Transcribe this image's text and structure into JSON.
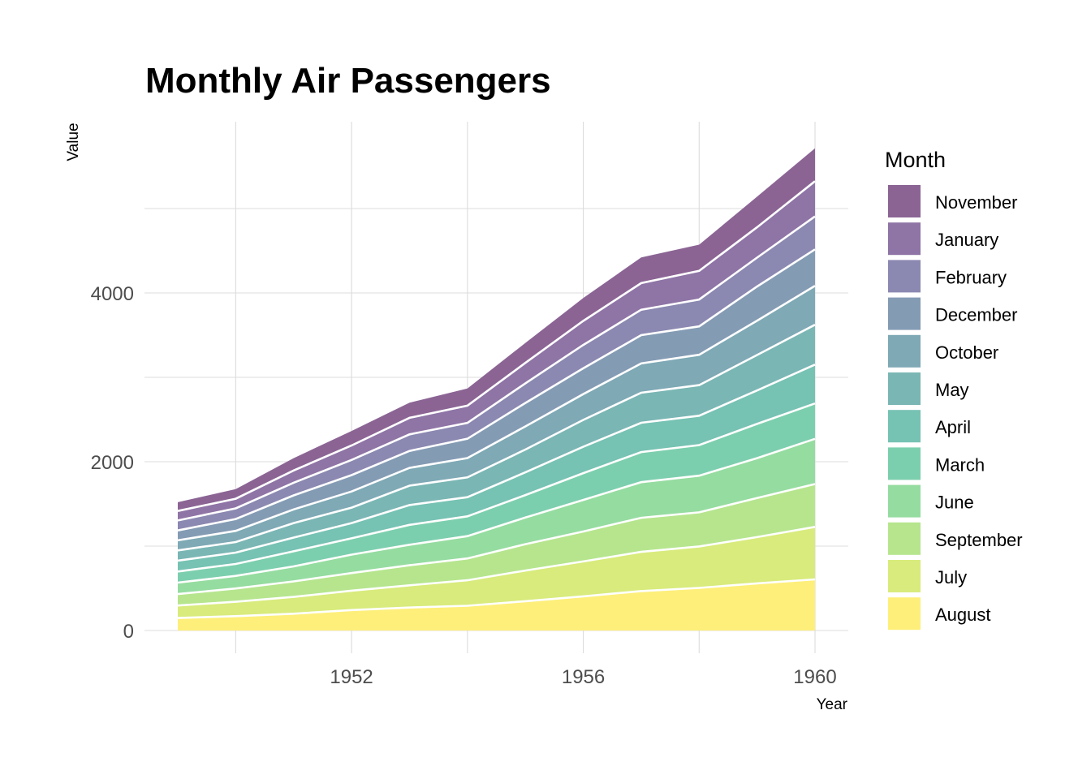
{
  "chart_data": {
    "type": "area",
    "stacked": true,
    "title": "Monthly Air Passengers",
    "xlabel": "Year",
    "ylabel": "Value",
    "x": [
      1949,
      1950,
      1951,
      1952,
      1953,
      1954,
      1955,
      1956,
      1957,
      1958,
      1959,
      1960
    ],
    "xlim": [
      1948.4,
      1960.6
    ],
    "ylim": [
      -500,
      6050
    ],
    "x_ticks": [
      1952,
      1956,
      1960
    ],
    "x_tick_labels": [
      "1952",
      "1956",
      "1960"
    ],
    "y_ticks": [
      0,
      2000,
      4000
    ],
    "y_tick_labels": [
      "0",
      "2000",
      "4000"
    ],
    "y_minor_ticks": [
      1000,
      3000,
      5000
    ],
    "x_minor_ticks": [
      1950,
      1954,
      1958
    ],
    "grid": true,
    "legend_title": "Month",
    "legend_position": "right",
    "stack_order_bottom_to_top": [
      "August",
      "July",
      "September",
      "June",
      "March",
      "April",
      "May",
      "October",
      "December",
      "February",
      "January",
      "November"
    ],
    "series": [
      {
        "name": "November",
        "color": "#8b6494",
        "values": [
          104,
          114,
          146,
          172,
          180,
          203,
          237,
          271,
          305,
          310,
          362,
          390
        ]
      },
      {
        "name": "January",
        "color": "#8f74a6",
        "values": [
          112,
          115,
          145,
          171,
          196,
          204,
          242,
          284,
          315,
          340,
          360,
          417
        ]
      },
      {
        "name": "February",
        "color": "#8b88b1",
        "values": [
          118,
          126,
          150,
          180,
          196,
          188,
          233,
          277,
          301,
          318,
          342,
          391
        ]
      },
      {
        "name": "December",
        "color": "#849bb4",
        "values": [
          118,
          140,
          166,
          194,
          201,
          229,
          278,
          306,
          336,
          337,
          405,
          432
        ]
      },
      {
        "name": "October",
        "color": "#7ea9b5",
        "values": [
          119,
          133,
          162,
          191,
          211,
          229,
          274,
          306,
          347,
          359,
          407,
          461
        ]
      },
      {
        "name": "May",
        "color": "#7ab6b4",
        "values": [
          121,
          125,
          172,
          183,
          229,
          234,
          270,
          318,
          355,
          363,
          420,
          472
        ]
      },
      {
        "name": "April",
        "color": "#76c2b3",
        "values": [
          129,
          135,
          163,
          181,
          235,
          227,
          269,
          313,
          348,
          348,
          396,
          461
        ]
      },
      {
        "name": "March",
        "color": "#7ccfae",
        "values": [
          132,
          141,
          178,
          193,
          236,
          235,
          267,
          317,
          356,
          362,
          406,
          419
        ]
      },
      {
        "name": "June",
        "color": "#95dca0",
        "values": [
          135,
          149,
          178,
          218,
          243,
          264,
          315,
          374,
          422,
          435,
          472,
          535
        ]
      },
      {
        "name": "September",
        "color": "#b6e58e",
        "values": [
          136,
          158,
          184,
          209,
          237,
          259,
          312,
          355,
          404,
          404,
          463,
          508
        ]
      },
      {
        "name": "July",
        "color": "#d8eb7c",
        "values": [
          148,
          170,
          199,
          230,
          264,
          302,
          364,
          413,
          465,
          491,
          548,
          622
        ]
      },
      {
        "name": "August",
        "color": "#fdef7a",
        "values": [
          148,
          170,
          199,
          242,
          272,
          293,
          347,
          405,
          467,
          505,
          559,
          606
        ]
      }
    ]
  }
}
